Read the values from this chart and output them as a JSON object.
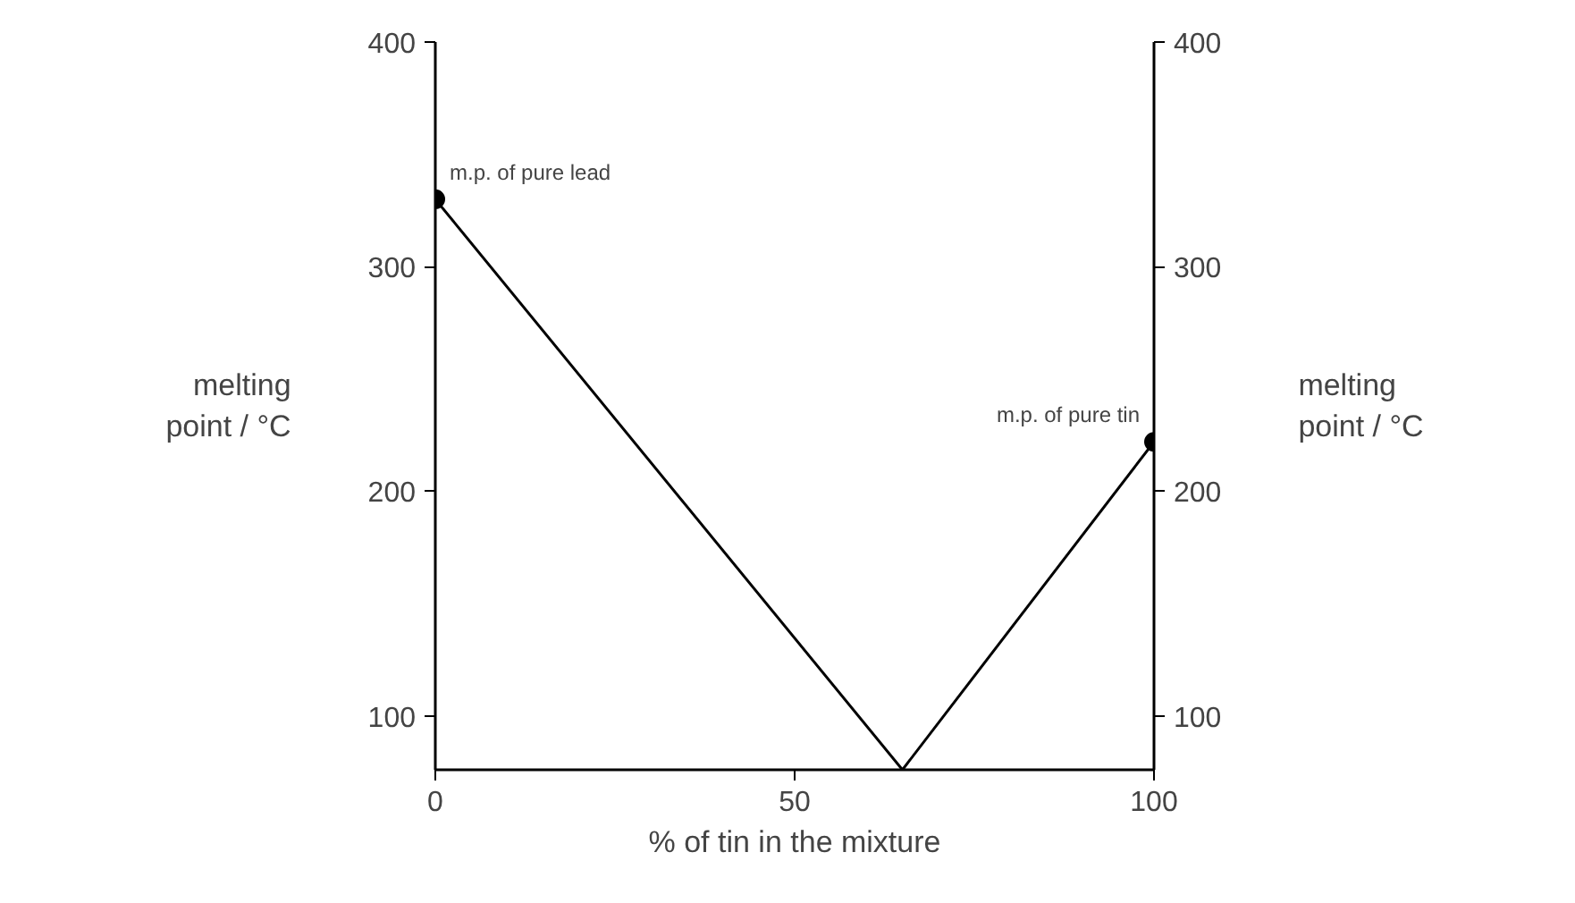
{
  "chart_data": {
    "type": "line",
    "xlabel": "% of tin in the mixture",
    "ylabel": "melting point / °C",
    "y2label": "melting point / °C",
    "xlim": [
      0,
      100
    ],
    "xticks": [
      0,
      50,
      100
    ],
    "ylim": [
      76,
      400
    ],
    "yticks": [
      100,
      200,
      300,
      400
    ],
    "y2lim": [
      76,
      400
    ],
    "y2ticks": [
      100,
      200,
      300,
      400
    ],
    "grid": false,
    "series": [
      {
        "color": "#000000",
        "x": [
          0,
          65,
          100
        ],
        "values": [
          330,
          76,
          222
        ],
        "marker": "none"
      },
      {
        "type": "scatter",
        "color": "#000000",
        "x": [
          0,
          100
        ],
        "values": [
          330,
          222
        ],
        "marker": "circle"
      }
    ],
    "annotations": [
      {
        "text": "m.p. of pure lead",
        "x": 0,
        "y": 330
      },
      {
        "text": "m.p. of pure tin",
        "x": 100,
        "y": 222
      }
    ]
  }
}
